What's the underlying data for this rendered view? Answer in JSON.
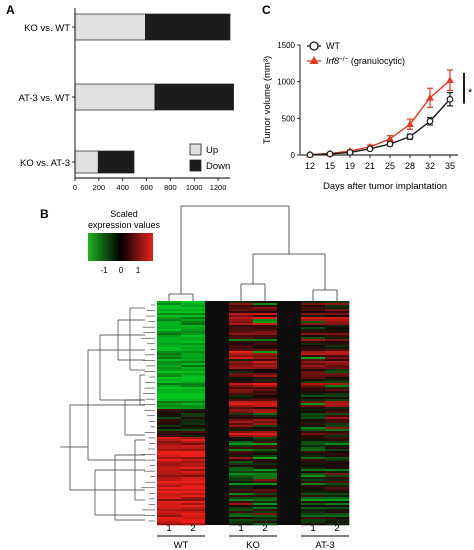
{
  "panels": {
    "a": {
      "label": "A"
    },
    "b": {
      "label": "B"
    },
    "c": {
      "label": "C"
    }
  },
  "chart_data": [
    {
      "panel": "A",
      "type": "bar",
      "orientation": "horizontal",
      "stacked": true,
      "categories": [
        "KO vs. WT",
        "AT-3 vs. WT",
        "KO vs. AT-3"
      ],
      "series": [
        {
          "name": "Up",
          "color": "#e0e0e0",
          "values": [
            590,
            670,
            195
          ]
        },
        {
          "name": "Down",
          "color": "#1c1c1c",
          "values": [
            710,
            660,
            300
          ]
        }
      ],
      "xlim": [
        0,
        1300
      ],
      "xticks": [
        0,
        200,
        400,
        600,
        800,
        1000,
        1200
      ],
      "legend_position": "bottom-right"
    },
    {
      "panel": "C",
      "type": "line",
      "x": [
        12,
        15,
        19,
        21,
        25,
        28,
        32,
        35
      ],
      "xlabel": "Days after tumor implantation",
      "ylabel": "Tumor volume (mm³)",
      "ylim": [
        0,
        1500
      ],
      "yticks": [
        0,
        500,
        1000,
        1500
      ],
      "series": [
        {
          "name": "WT",
          "color": "#1a1a1a",
          "marker": "open-circle",
          "values": [
            3,
            15,
            35,
            85,
            150,
            250,
            460,
            760
          ],
          "errors": [
            2,
            6,
            10,
            18,
            25,
            35,
            50,
            90
          ]
        },
        {
          "name": "Irf8⁻/⁻ (granulocytic)",
          "name_italic": "Irf8",
          "name_sup": "−/−",
          "name_rest": " (granulocytic)",
          "color": "#e03a24",
          "marker": "filled-triangle",
          "values": [
            5,
            20,
            55,
            110,
            220,
            420,
            780,
            1020
          ],
          "errors": [
            3,
            8,
            12,
            25,
            45,
            70,
            130,
            140
          ]
        }
      ],
      "significance": "*",
      "legend_position": "top-left"
    },
    {
      "panel": "B",
      "type": "heatmap",
      "colorbar": {
        "title_line1": "Scaled",
        "title_line2": "expression values",
        "ticks": [
          "-1",
          "0",
          "1"
        ],
        "colors": [
          "#22b022",
          "#000000",
          "#e82020"
        ]
      },
      "groups": [
        {
          "name": "WT",
          "samples": [
            "1",
            "2"
          ]
        },
        {
          "name": "KO",
          "samples": [
            "1",
            "2"
          ]
        },
        {
          "name": "AT-3",
          "samples": [
            "1",
            "2"
          ]
        }
      ],
      "column_dendrogram": true,
      "row_dendrogram": true
    }
  ]
}
